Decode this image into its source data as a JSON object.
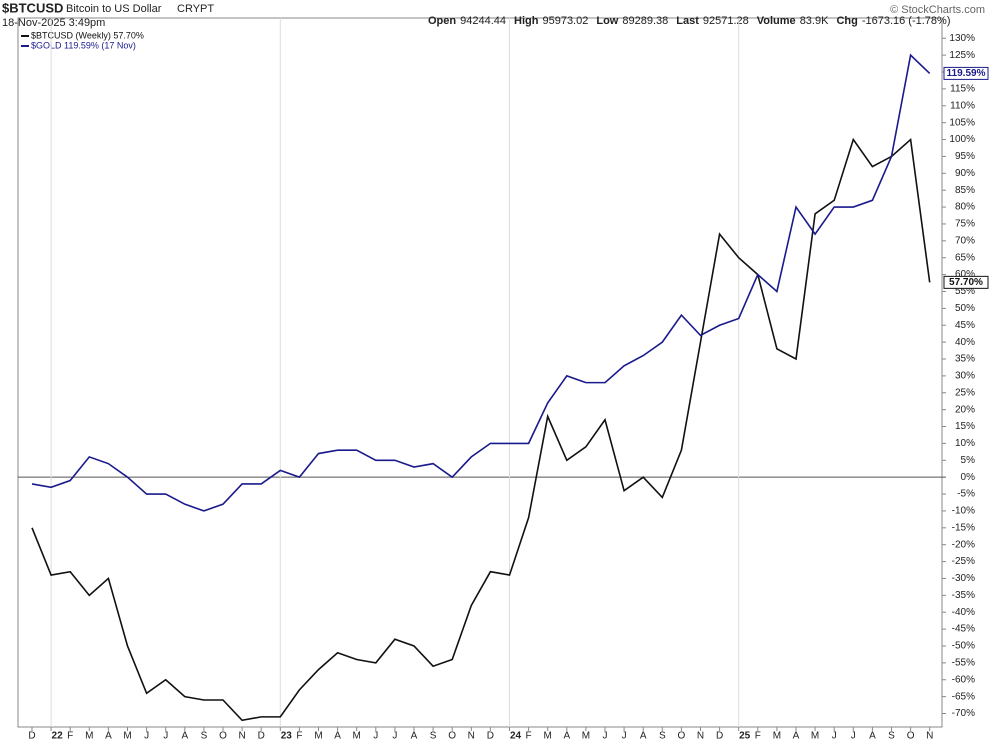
{
  "header": {
    "symbol": "$BTCUSD",
    "description": "Bitcoin to US Dollar",
    "exchange": "CRYPT",
    "timestamp": "18-Nov-2025 3:49pm",
    "stats": [
      {
        "label": "Open",
        "value": "94244.44"
      },
      {
        "label": "High",
        "value": "95973.02"
      },
      {
        "label": "Low",
        "value": "89289.38"
      },
      {
        "label": "Last",
        "value": "92571.28"
      },
      {
        "label": "Volume",
        "value": "83.9K"
      },
      {
        "label": "Chg",
        "value": "-1673.16 (-1.78%)"
      }
    ],
    "watermark": "© StockCharts.com"
  },
  "chart_data": {
    "type": "line",
    "categories": [
      "D",
      "22",
      "F",
      "M",
      "A",
      "M",
      "J",
      "J",
      "A",
      "S",
      "O",
      "N",
      "D",
      "23",
      "F",
      "M",
      "A",
      "M",
      "J",
      "J",
      "A",
      "S",
      "O",
      "N",
      "D",
      "24",
      "F",
      "M",
      "A",
      "M",
      "J",
      "J",
      "A",
      "S",
      "O",
      "N",
      "D",
      "25",
      "F",
      "M",
      "A",
      "M",
      "J",
      "J",
      "A",
      "S",
      "O",
      "N"
    ],
    "series": [
      {
        "name": "$BTCUSD (Weekly) 57.70%",
        "color": "#111111",
        "end_label": "57.70%",
        "values": [
          -15,
          -29,
          -28,
          -35,
          -30,
          -50,
          -64,
          -60,
          -65,
          -66,
          -66,
          -72,
          -71,
          -71,
          -63,
          -57,
          -52,
          -54,
          -55,
          -48,
          -50,
          -56,
          -54,
          -38,
          -28,
          -29,
          -12,
          18,
          5,
          9,
          17,
          -4,
          0,
          -6,
          8,
          40,
          72,
          65,
          60,
          38,
          35,
          78,
          82,
          100,
          92,
          95,
          100,
          57.7
        ]
      },
      {
        "name": "$GOLD 119.59% (17 Nov)",
        "color": "#1a1a8c",
        "end_label": "119.59%",
        "values": [
          -2,
          -3,
          -1,
          6,
          4,
          0,
          -5,
          -5,
          -8,
          -10,
          -8,
          -2,
          -2,
          2,
          0,
          7,
          8,
          8,
          5,
          5,
          3,
          4,
          0,
          6,
          10,
          10,
          10,
          22,
          30,
          28,
          28,
          33,
          36,
          40,
          48,
          42,
          45,
          47,
          60,
          55,
          80,
          72,
          80,
          80,
          82,
          95,
          125,
          119.59
        ]
      }
    ],
    "ylim": [
      -74,
      136
    ],
    "yticks": [
      {
        "value": -70,
        "label": "-70%"
      },
      {
        "value": -65,
        "label": "-65%"
      },
      {
        "value": -60,
        "label": "-60%"
      },
      {
        "value": -55,
        "label": "-55%"
      },
      {
        "value": -50,
        "label": "-50%"
      },
      {
        "value": -45,
        "label": "-45%"
      },
      {
        "value": -40,
        "label": "-40%"
      },
      {
        "value": -35,
        "label": "-35%"
      },
      {
        "value": -30,
        "label": "-30%"
      },
      {
        "value": -25,
        "label": "-25%"
      },
      {
        "value": -20,
        "label": "-20%"
      },
      {
        "value": -15,
        "label": "-15%"
      },
      {
        "value": -10,
        "label": "-10%"
      },
      {
        "value": -5,
        "label": "-5%"
      },
      {
        "value": 0,
        "label": "0%"
      },
      {
        "value": 5,
        "label": "5%"
      },
      {
        "value": 10,
        "label": "10%"
      },
      {
        "value": 15,
        "label": "15%"
      },
      {
        "value": 20,
        "label": "20%"
      },
      {
        "value": 25,
        "label": "25%"
      },
      {
        "value": 30,
        "label": "30%"
      },
      {
        "value": 35,
        "label": "35%"
      },
      {
        "value": 40,
        "label": "40%"
      },
      {
        "value": 45,
        "label": "45%"
      },
      {
        "value": 50,
        "label": "50%"
      },
      {
        "value": 55,
        "label": "55%"
      },
      {
        "value": 60,
        "label": "60%"
      },
      {
        "value": 65,
        "label": "65%"
      },
      {
        "value": 70,
        "label": "70%"
      },
      {
        "value": 75,
        "label": "75%"
      },
      {
        "value": 80,
        "label": "80%"
      },
      {
        "value": 85,
        "label": "85%"
      },
      {
        "value": 90,
        "label": "90%"
      },
      {
        "value": 95,
        "label": "95%"
      },
      {
        "value": 100,
        "label": "100%"
      },
      {
        "value": 105,
        "label": "105%"
      },
      {
        "value": 110,
        "label": "110%"
      },
      {
        "value": 115,
        "label": "115%"
      },
      {
        "value": 120,
        "label": "120%"
      },
      {
        "value": 125,
        "label": "125%"
      },
      {
        "value": 130,
        "label": "130%"
      }
    ]
  }
}
